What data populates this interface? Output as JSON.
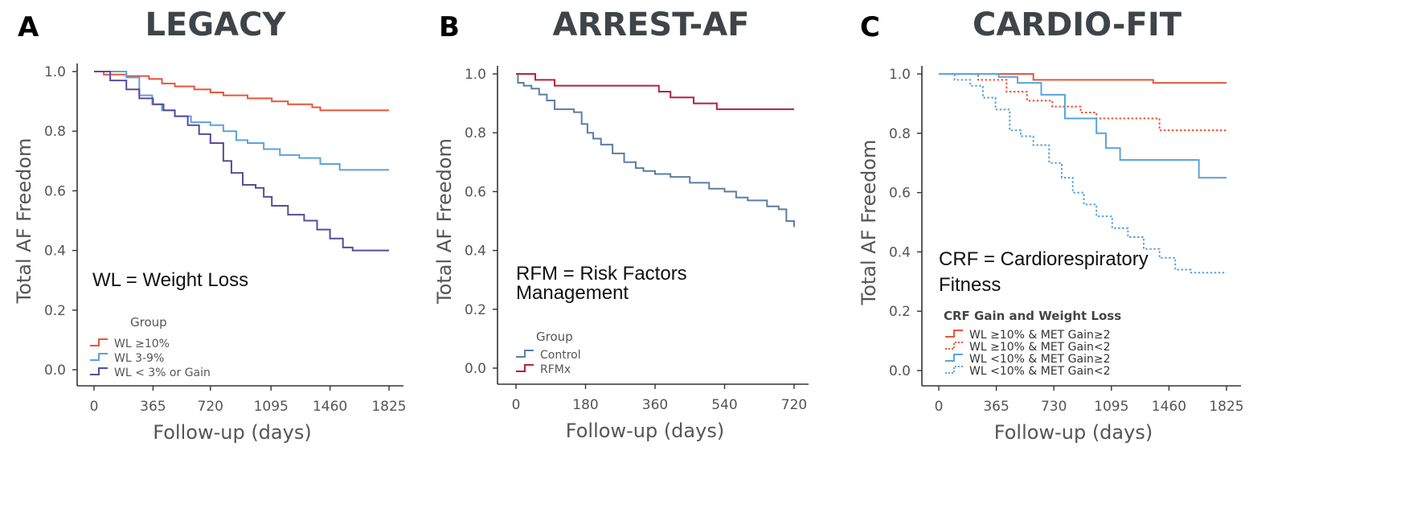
{
  "panels": [
    {
      "letter": "A",
      "title": "LEGACY",
      "note": [
        "WL = Weight Loss"
      ],
      "legend_title": "Group"
    },
    {
      "letter": "B",
      "title": "ARREST-AF",
      "note": [
        "RFM = Risk Factors",
        "Management"
      ],
      "legend_title": "Group"
    },
    {
      "letter": "C",
      "title": "CARDIO-FIT",
      "note": [
        "CRF = Cardiorespiratory",
        "Fitness"
      ],
      "legend_title": "CRF Gain and Weight Loss"
    }
  ],
  "chart_data": [
    {
      "type": "line",
      "step": true,
      "title": "LEGACY",
      "xlabel": "Follow-up (days)",
      "ylabel": "Total AF Freedom",
      "xticks": [
        0,
        365,
        720,
        1095,
        1460,
        1825
      ],
      "yticks": [
        0.0,
        0.2,
        0.4,
        0.6,
        0.8,
        1.0
      ],
      "xlim": [
        0,
        1825
      ],
      "ylim": [
        0,
        1
      ],
      "legend_title": "Group",
      "legend_position": "bottom-left",
      "series": [
        {
          "name": "WL ≥10%",
          "color": "#e8553a",
          "dash": false,
          "points": [
            [
              0,
              1.0
            ],
            [
              60,
              0.99
            ],
            [
              200,
              0.985
            ],
            [
              340,
              0.975
            ],
            [
              420,
              0.96
            ],
            [
              500,
              0.95
            ],
            [
              620,
              0.94
            ],
            [
              720,
              0.93
            ],
            [
              800,
              0.92
            ],
            [
              950,
              0.91
            ],
            [
              1100,
              0.9
            ],
            [
              1200,
              0.89
            ],
            [
              1350,
              0.88
            ],
            [
              1400,
              0.87
            ],
            [
              1825,
              0.87
            ]
          ]
        },
        {
          "name": "WL 3-9%",
          "color": "#5aa3dc",
          "dash": false,
          "points": [
            [
              0,
              1.0
            ],
            [
              200,
              0.98
            ],
            [
              280,
              0.92
            ],
            [
              360,
              0.89
            ],
            [
              420,
              0.87
            ],
            [
              500,
              0.85
            ],
            [
              600,
              0.83
            ],
            [
              720,
              0.82
            ],
            [
              800,
              0.8
            ],
            [
              880,
              0.77
            ],
            [
              950,
              0.76
            ],
            [
              1050,
              0.74
            ],
            [
              1150,
              0.72
            ],
            [
              1270,
              0.71
            ],
            [
              1400,
              0.69
            ],
            [
              1520,
              0.67
            ],
            [
              1825,
              0.67
            ]
          ]
        },
        {
          "name": "WL < 3% or Gain",
          "color": "#5b4a9b",
          "dash": false,
          "points": [
            [
              0,
              1.0
            ],
            [
              100,
              0.97
            ],
            [
              200,
              0.94
            ],
            [
              280,
              0.91
            ],
            [
              365,
              0.89
            ],
            [
              430,
              0.87
            ],
            [
              500,
              0.85
            ],
            [
              580,
              0.82
            ],
            [
              650,
              0.79
            ],
            [
              720,
              0.76
            ],
            [
              800,
              0.7
            ],
            [
              850,
              0.66
            ],
            [
              920,
              0.62
            ],
            [
              1000,
              0.61
            ],
            [
              1050,
              0.58
            ],
            [
              1100,
              0.55
            ],
            [
              1200,
              0.52
            ],
            [
              1300,
              0.5
            ],
            [
              1380,
              0.47
            ],
            [
              1460,
              0.44
            ],
            [
              1540,
              0.41
            ],
            [
              1600,
              0.4
            ],
            [
              1825,
              0.4
            ]
          ]
        }
      ]
    },
    {
      "type": "line",
      "step": true,
      "title": "ARREST-AF",
      "xlabel": "Follow-up (days)",
      "ylabel": "Total AF Freedom",
      "xticks": [
        0,
        180,
        360,
        540,
        720
      ],
      "yticks": [
        0.0,
        0.2,
        0.4,
        0.6,
        0.8,
        1.0
      ],
      "xlim": [
        0,
        720
      ],
      "ylim": [
        0,
        1
      ],
      "legend_title": "Group",
      "legend_position": "bottom-left",
      "series": [
        {
          "name": "Control",
          "color": "#5a7ea4",
          "dash": false,
          "points": [
            [
              0,
              1.0
            ],
            [
              5,
              0.97
            ],
            [
              20,
              0.96
            ],
            [
              40,
              0.95
            ],
            [
              60,
              0.93
            ],
            [
              80,
              0.91
            ],
            [
              100,
              0.88
            ],
            [
              150,
              0.87
            ],
            [
              170,
              0.83
            ],
            [
              185,
              0.8
            ],
            [
              200,
              0.78
            ],
            [
              220,
              0.76
            ],
            [
              250,
              0.73
            ],
            [
              280,
              0.7
            ],
            [
              310,
              0.68
            ],
            [
              330,
              0.67
            ],
            [
              360,
              0.66
            ],
            [
              400,
              0.65
            ],
            [
              450,
              0.63
            ],
            [
              500,
              0.61
            ],
            [
              540,
              0.6
            ],
            [
              570,
              0.58
            ],
            [
              600,
              0.57
            ],
            [
              650,
              0.55
            ],
            [
              680,
              0.54
            ],
            [
              700,
              0.5
            ],
            [
              720,
              0.48
            ]
          ]
        },
        {
          "name": "RFMx",
          "color": "#b5203f",
          "dash": false,
          "points": [
            [
              0,
              1.0
            ],
            [
              50,
              0.98
            ],
            [
              100,
              0.96
            ],
            [
              360,
              0.96
            ],
            [
              370,
              0.94
            ],
            [
              400,
              0.92
            ],
            [
              460,
              0.9
            ],
            [
              520,
              0.88
            ],
            [
              720,
              0.88
            ]
          ]
        }
      ]
    },
    {
      "type": "line",
      "step": true,
      "title": "CARDIO-FIT",
      "xlabel": "Follow-up (days)",
      "ylabel": "Total AF Freedom",
      "xticks": [
        0,
        365,
        730,
        1095,
        1460,
        1825
      ],
      "yticks": [
        0.0,
        0.2,
        0.4,
        0.6,
        0.8,
        1.0
      ],
      "xlim": [
        0,
        1825
      ],
      "ylim": [
        0,
        1
      ],
      "legend_title": "CRF Gain and Weight Loss",
      "legend_position": "bottom-left",
      "series": [
        {
          "name": "WL ≥10% & MET Gain≥2",
          "color": "#e8553a",
          "dash": false,
          "points": [
            [
              0,
              1.0
            ],
            [
              600,
              0.98
            ],
            [
              1360,
              0.97
            ],
            [
              1825,
              0.97
            ]
          ]
        },
        {
          "name": "WL ≥10% & MET Gain<2",
          "color": "#e8553a",
          "dash": true,
          "points": [
            [
              0,
              1.0
            ],
            [
              250,
              0.98
            ],
            [
              430,
              0.94
            ],
            [
              560,
              0.91
            ],
            [
              720,
              0.89
            ],
            [
              900,
              0.87
            ],
            [
              1000,
              0.85
            ],
            [
              1400,
              0.81
            ],
            [
              1825,
              0.81
            ]
          ]
        },
        {
          "name": "WL <10% & MET Gain≥2",
          "color": "#5aa3dc",
          "dash": false,
          "points": [
            [
              0,
              1.0
            ],
            [
              380,
              0.99
            ],
            [
              500,
              0.97
            ],
            [
              650,
              0.93
            ],
            [
              800,
              0.85
            ],
            [
              1000,
              0.8
            ],
            [
              1060,
              0.75
            ],
            [
              1150,
              0.71
            ],
            [
              1650,
              0.65
            ],
            [
              1825,
              0.65
            ]
          ]
        },
        {
          "name": "WL <10% & MET Gain<2",
          "color": "#5aa3dc",
          "dash": true,
          "points": [
            [
              0,
              1.0
            ],
            [
              100,
              0.98
            ],
            [
              200,
              0.96
            ],
            [
              280,
              0.92
            ],
            [
              360,
              0.88
            ],
            [
              450,
              0.81
            ],
            [
              520,
              0.79
            ],
            [
              600,
              0.76
            ],
            [
              700,
              0.7
            ],
            [
              780,
              0.65
            ],
            [
              850,
              0.6
            ],
            [
              920,
              0.56
            ],
            [
              1000,
              0.52
            ],
            [
              1100,
              0.48
            ],
            [
              1200,
              0.45
            ],
            [
              1300,
              0.41
            ],
            [
              1400,
              0.38
            ],
            [
              1500,
              0.34
            ],
            [
              1600,
              0.33
            ],
            [
              1825,
              0.33
            ]
          ]
        }
      ]
    }
  ]
}
